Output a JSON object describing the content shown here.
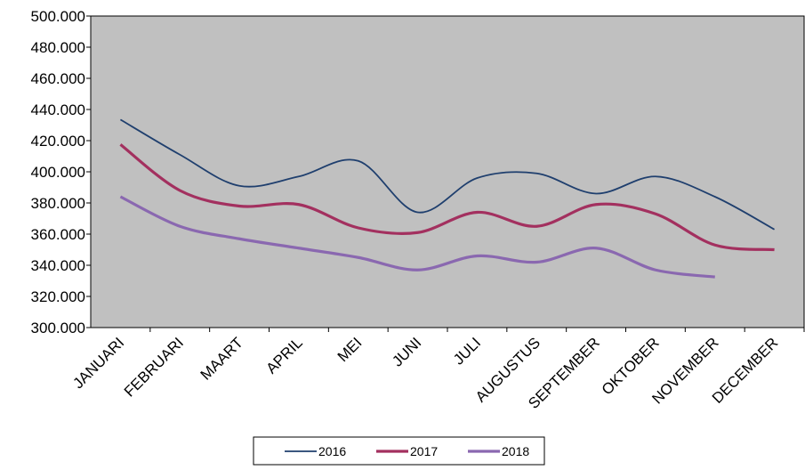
{
  "chart_data": {
    "type": "line",
    "categories": [
      "JANUARI",
      "FEBRUARI",
      "MAART",
      "APRIL",
      "MEI",
      "JUNI",
      "JULI",
      "AUGUSTUS",
      "SEPTEMBER",
      "OKTOBER",
      "NOVEMBER",
      "DECEMBER"
    ],
    "series": [
      {
        "name": "2016",
        "color": "#1f3f6e",
        "values": [
          433500,
          411000,
          391000,
          397000,
          407000,
          374000,
          396000,
          399000,
          386000,
          397000,
          384000,
          363000
        ]
      },
      {
        "name": "2017",
        "color": "#a3305f",
        "values": [
          417500,
          388000,
          378000,
          379000,
          364000,
          361000,
          374000,
          365000,
          379000,
          373000,
          353000,
          350000
        ]
      },
      {
        "name": "2018",
        "color": "#8a68b0",
        "values": [
          384000,
          365000,
          357000,
          351000,
          345000,
          337000,
          346000,
          342000,
          351000,
          337000,
          332500,
          null
        ]
      }
    ],
    "ylim": [
      300000,
      500000
    ],
    "yticks": [
      {
        "value": 300000,
        "label": "300.000"
      },
      {
        "value": 320000,
        "label": "320.000"
      },
      {
        "value": 340000,
        "label": "340.000"
      },
      {
        "value": 360000,
        "label": "360.000"
      },
      {
        "value": 380000,
        "label": "380.000"
      },
      {
        "value": 400000,
        "label": "400.000"
      },
      {
        "value": 420000,
        "label": "420.000"
      },
      {
        "value": 440000,
        "label": "440.000"
      },
      {
        "value": 460000,
        "label": "460.000"
      },
      {
        "value": 480000,
        "label": "480.000"
      },
      {
        "value": 500000,
        "label": "500.000"
      }
    ],
    "legend": "bottom"
  }
}
